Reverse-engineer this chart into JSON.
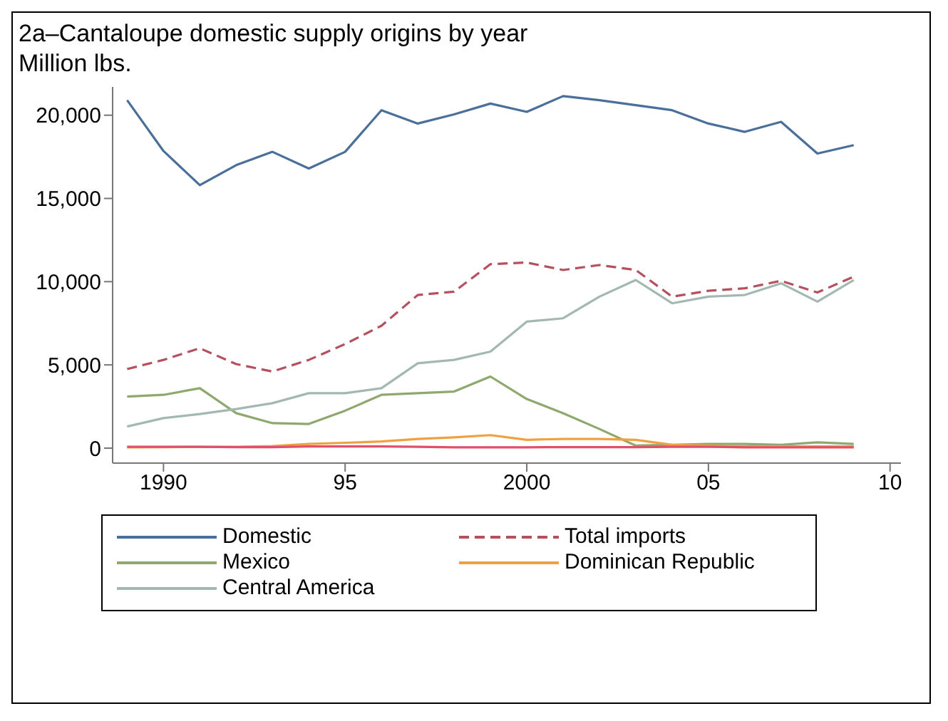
{
  "chart_data": {
    "type": "line",
    "title": "2a–Cantaloupe domestic supply origins by year",
    "subtitle": "Million lbs.",
    "x": [
      1989,
      1990,
      1991,
      1992,
      1993,
      1994,
      1995,
      1996,
      1997,
      1998,
      1999,
      2000,
      2001,
      2002,
      2003,
      2004,
      2005,
      2006,
      2007,
      2008,
      2009
    ],
    "xlim": [
      1988.6,
      2010.3
    ],
    "xticks": [
      {
        "value": 1990,
        "label": "1990"
      },
      {
        "value": 1995,
        "label": "95"
      },
      {
        "value": 2000,
        "label": "2000"
      },
      {
        "value": 2005,
        "label": "05"
      },
      {
        "value": 2010,
        "label": "10"
      }
    ],
    "ylim": [
      -900,
      21700
    ],
    "yticks": [
      {
        "value": 0,
        "label": "0"
      },
      {
        "value": 5000,
        "label": "5,000"
      },
      {
        "value": 10000,
        "label": "10,000"
      },
      {
        "value": 15000,
        "label": "15,000"
      },
      {
        "value": 20000,
        "label": "20,000"
      }
    ],
    "grid": false,
    "legend": "bottom",
    "marker": "none",
    "series": [
      {
        "name": "Domestic",
        "color": "#4a6f9a",
        "values": [
          20900,
          17850,
          15800,
          17000,
          17800,
          16800,
          17800,
          20300,
          19500,
          20050,
          20700,
          20200,
          21150,
          20900,
          20600,
          20300,
          19500,
          19000,
          19600,
          17700,
          18200
        ]
      },
      {
        "name": "Total imports",
        "color": "#b5515f",
        "line_style": "dashed",
        "values": [
          4750,
          5300,
          6000,
          5050,
          4600,
          5300,
          6250,
          7350,
          9200,
          9400,
          11050,
          11150,
          10700,
          11000,
          10700,
          9100,
          9450,
          9600,
          10050,
          9350,
          10300
        ]
      },
      {
        "name": "Mexico",
        "color": "#8fa86e",
        "values": [
          3100,
          3200,
          3600,
          2100,
          1500,
          1450,
          2250,
          3200,
          3300,
          3400,
          4300,
          2950,
          2100,
          1150,
          150,
          200,
          250,
          250,
          200,
          350,
          250
        ]
      },
      {
        "name": "Dominican Republic",
        "color": "#f0a040",
        "values": [
          50,
          60,
          70,
          80,
          120,
          250,
          320,
          400,
          550,
          650,
          780,
          500,
          550,
          550,
          500,
          200,
          150,
          100,
          100,
          100,
          100
        ]
      },
      {
        "name": "Central America",
        "color": "#a3b8b0",
        "values": [
          1300,
          1800,
          2050,
          2350,
          2700,
          3300,
          3300,
          3600,
          5100,
          5300,
          5800,
          7600,
          7800,
          9100,
          10100,
          8700,
          9100,
          9200,
          9900,
          8800,
          10100
        ]
      },
      {
        "color": "#e0506a",
        "values": [
          80,
          80,
          80,
          60,
          60,
          100,
          100,
          100,
          80,
          50,
          50,
          50,
          60,
          60,
          60,
          80,
          80,
          50,
          50,
          50,
          50
        ]
      }
    ]
  }
}
